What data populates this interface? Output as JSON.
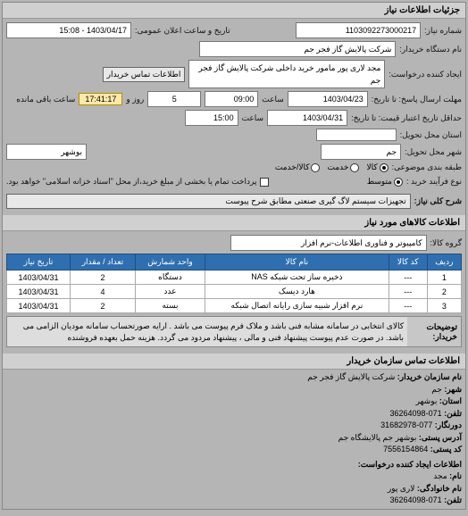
{
  "header": {
    "title": "جزئیات اطلاعات نیاز"
  },
  "form": {
    "req_no_label": "شماره نیاز:",
    "req_no": "1103092273000217",
    "pub_date_label": "تاریخ و ساعت اعلان عمومی:",
    "pub_date": "1403/04/17 - 15:08",
    "buyer_org_label": "نام دستگاه خریدار:",
    "buyer_org": "شرکت پالایش گاز فجر جم",
    "creator_label": "ایجاد کننده درخواست:",
    "creator": "مجد  لاری پور مامور خرید داخلی شرکت پالایش گاز فجر جم",
    "contact_link": "اطلاعات تماس خریدار",
    "deadline_label": "مهلت ارسال پاسخ: تا تاریخ:",
    "deadline_date": "1403/04/23",
    "hour_label": "ساعت",
    "deadline_hour": "09:00",
    "days_label": "روز و",
    "days": "5",
    "remain_label": "ساعت باقی مانده",
    "remain_time": "17:41:17",
    "validity_label": "حداقل تاریخ اعتبار قیمت: تا تاریخ:",
    "validity_date": "1403/04/31",
    "validity_hour": "15:00",
    "delivery_state_label": "استان محل تحویل:",
    "delivery_city_label": "شهر محل تحویل:",
    "city_jam": "جم",
    "city_bushehr": "بوشهر",
    "budget_label": "طبقه بندی موضوعی:",
    "r_goods": "کالا",
    "r_service": "خدمت",
    "r_both": "کالا/خدمت",
    "proc_label": "نوع فرآیند خرید :",
    "r_mid": "متوسط",
    "pay_note": "پرداخت تمام یا بخشی از مبلغ خرید،از محل \"اسناد خزانه اسلامی\" خواهد بود.",
    "subject_label": "شرح کلی نیاز:",
    "subject": "تجهیزات سیستم لاگ گیری صنعتی مطابق شرح پیوست"
  },
  "items_section": {
    "title": "اطلاعات کالاهای مورد نیاز",
    "group_label": "گروه کالا:",
    "group": "کامپیوتر و فناوری اطلاعات-نرم افزار",
    "columns": [
      "ردیف",
      "کد کالا",
      "نام کالا",
      "واحد شمارش",
      "تعداد / مقدار",
      "تاریخ نیاز"
    ],
    "rows": [
      [
        "1",
        "---",
        "ذخیره ساز تحت شبکه NAS",
        "دستگاه",
        "2",
        "1403/04/31"
      ],
      [
        "2",
        "---",
        "هارد دیسک",
        "عدد",
        "4",
        "1403/04/31"
      ],
      [
        "3",
        "---",
        "نرم افزار شبیه سازی رایانه اتصال شبکه",
        "بسته",
        "2",
        "1403/04/31"
      ]
    ]
  },
  "buyer_desc": {
    "label": "توضیحات خریدار:",
    "text": "کالای انتخابی در سامانه مشابه فنی باشد و ملاک فرم پیوست می باشد . ارایه صورتحساب سامانه مودیان الزامی می باشد. در صورت عدم پیوست پیشنهاد فنی و مالی ، پیشنهاد مردود می گردد. هزینه حمل بعهده فروشنده"
  },
  "contact_section": {
    "title": "اطلاعات تماس سازمان خریدار",
    "org_label": "نام سازمان خریدار:",
    "org": "شرکت پالایش گاز فجر جم",
    "city_label": "شهر:",
    "city": "جم",
    "province_label": "استان:",
    "province": "بوشهر",
    "phone_label": "تلفن:",
    "phone": "071-36264098",
    "fax_label": "دورنگار:",
    "fax": "077-31682978",
    "addr_label": "آدرس پستی:",
    "addr": "بوشهر جم پالایشگاه جم",
    "post_label": "کد پستی:",
    "post": "7556154864",
    "creator2_title": "اطلاعات ایجاد کننده درخواست:",
    "name_label": "نام:",
    "name": "مجد",
    "family_label": "نام خانوادگی:",
    "family": "لاری پور",
    "phone2_label": "تلفن:",
    "phone2": "071-36264098"
  },
  "colors": {
    "table_header_bg": "#2f6fb0",
    "highlight_bg": "#ffe9a8"
  }
}
